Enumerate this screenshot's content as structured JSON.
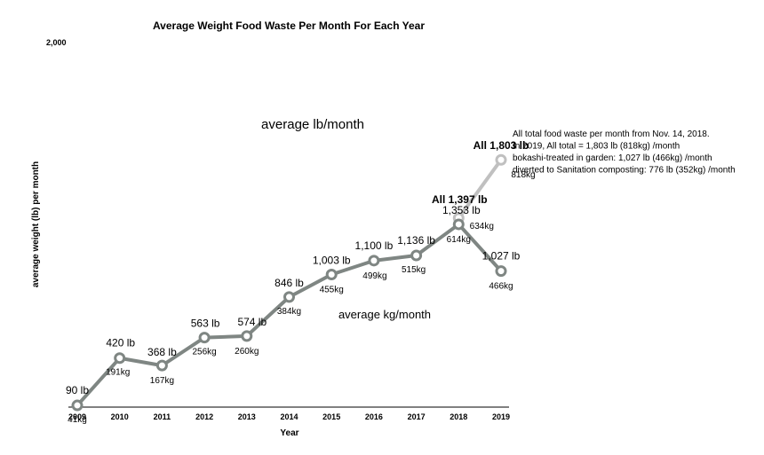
{
  "chart_data": {
    "type": "line",
    "title": "Average Weight Food Waste Per Month For Each Year",
    "xlabel": "Year",
    "ylabel": "average weight (lb) per month",
    "y_top_label": "2,000",
    "ylim": [
      0,
      2000
    ],
    "categories": [
      "2009",
      "2010",
      "2011",
      "2012",
      "2013",
      "2014",
      "2015",
      "2016",
      "2017",
      "2018",
      "2019"
    ],
    "series_labels": {
      "lb": "average lb/month",
      "kg": "average kg/month"
    },
    "main_series": {
      "x": [
        "2009",
        "2010",
        "2011",
        "2012",
        "2013",
        "2014",
        "2015",
        "2016",
        "2017",
        "2018",
        "2019"
      ],
      "values_lb": [
        90,
        420,
        368,
        563,
        574,
        846,
        1003,
        1100,
        1136,
        1353,
        1027
      ],
      "labels_lb": [
        "90 lb",
        "420 lb",
        "368 lb",
        "563 lb",
        "574 lb",
        "846 lb",
        "1,003 lb",
        "1,100 lb",
        "1,136 lb",
        "1,353 lb",
        "1,027 lb"
      ],
      "labels_kg": [
        "41kg",
        "191kg",
        "167kg",
        "256kg",
        "260kg",
        "384kg",
        "455kg",
        "499kg",
        "515kg",
        "614kg",
        "466kg"
      ],
      "color": "#7f8683"
    },
    "all_series": {
      "x": [
        "2018",
        "2019"
      ],
      "values_lb": [
        1397,
        1803
      ],
      "labels_lb": [
        "All 1,397 lb",
        "All 1,803 lb"
      ],
      "labels_kg": [
        "634kg",
        "818kg"
      ],
      "color": "#c0c0c0"
    },
    "grid": false,
    "annotation": [
      "All total food waste per month from Nov. 14, 2018.",
      "In 2019, All total = 1,803 lb (818kg) /month",
      "bokashi-treated in garden: 1,027 lb (466kg) /month",
      "diverted to Sanitation composting: 776 lb (352kg) /month"
    ]
  }
}
